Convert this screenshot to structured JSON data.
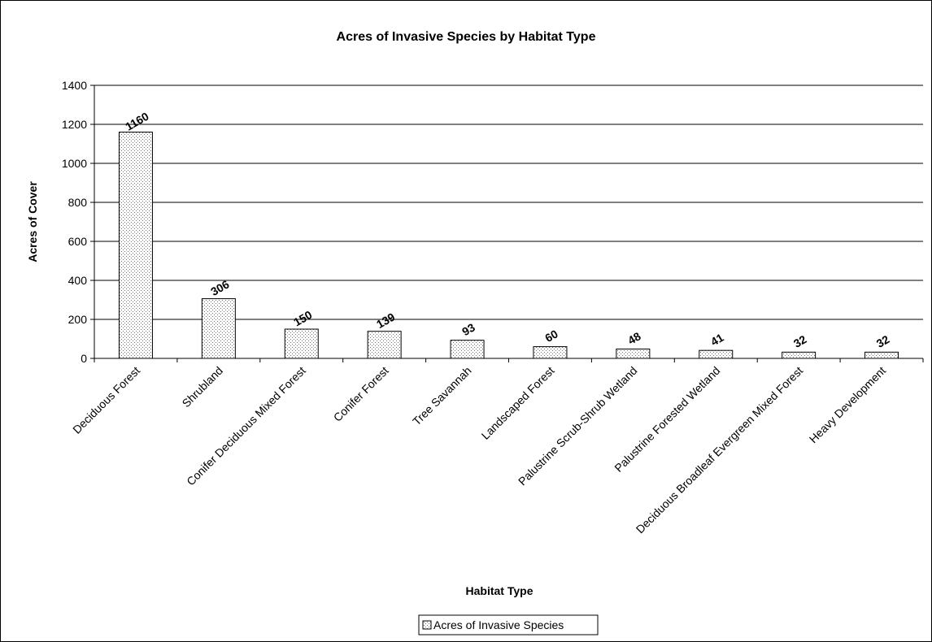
{
  "chart_data": {
    "type": "bar",
    "title": "Acres of Invasive Species by Habitat Type",
    "xlabel": "Habitat Type",
    "ylabel": "Acres of Cover",
    "ylim": [
      0,
      1400
    ],
    "yticks": [
      0,
      200,
      400,
      600,
      800,
      1000,
      1200,
      1400
    ],
    "grid": true,
    "legend_position": "bottom",
    "categories": [
      "Deciduous Forest",
      "Shrubland",
      "Conifer Deciduous Mixed Forest",
      "Conifer Forest",
      "Tree Savannah",
      "Landscaped Forest",
      "Palustrine Scrub-Shrub Wetland",
      "Palustrine Forested Wetland",
      "Deciduous Broadleaf Evergreen Mixed Forest",
      "Heavy Development"
    ],
    "series": [
      {
        "name": "Acres of Invasive Species",
        "values": [
          1160,
          306,
          150,
          139,
          93,
          60,
          48,
          41,
          32,
          32
        ]
      }
    ],
    "bar_fill": "#ffffff",
    "bar_dot_color": "#808080",
    "bar_outline": "#000000"
  }
}
